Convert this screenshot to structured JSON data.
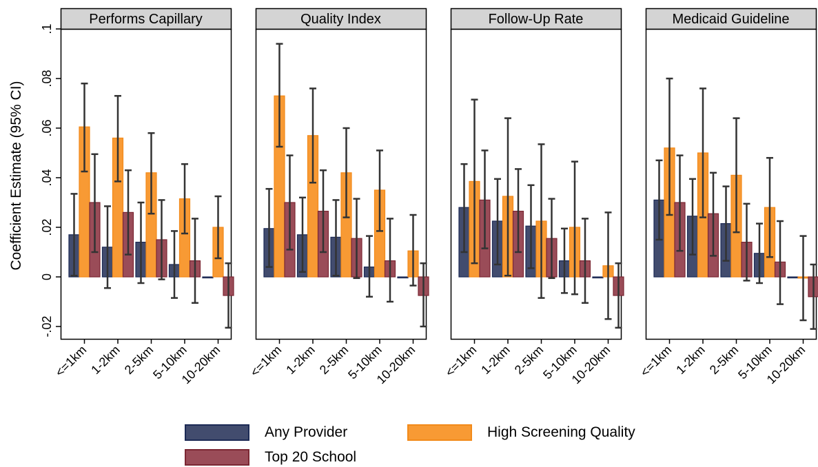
{
  "chart_data": {
    "type": "bar",
    "ylabel": "Coefficient Estimate (95% CI)",
    "ylim": [
      -0.025,
      0.1
    ],
    "yticks": [
      -0.02,
      0,
      0.02,
      0.04,
      0.06,
      0.08,
      0.1
    ],
    "ytick_labels": [
      "-.02",
      "0",
      ".02",
      ".04",
      ".06",
      ".08",
      ".1"
    ],
    "categories": [
      "<=1km",
      "1-2km",
      "2-5km",
      "5-10km",
      "10-20km"
    ],
    "series_names": [
      "Any Provider",
      "High Screening Quality",
      "Top 20 School"
    ],
    "colors": {
      "Any Provider": "#424c6e",
      "High Screening Quality": "#f89a34",
      "Top 20 School": "#9a4c58"
    },
    "edge_colors": {
      "Any Provider": "#1c2a55",
      "High Screening Quality": "#f28a1a",
      "Top 20 School": "#7b2733"
    },
    "panels": [
      {
        "title": "Performs Capillary",
        "series": [
          {
            "name": "Any Provider",
            "values": [
              0.017,
              0.012,
              0.014,
              0.005,
              0.0
            ],
            "ci_low": [
              0.0005,
              -0.0045,
              -0.0025,
              -0.0085,
              0.0
            ],
            "ci_high": [
              0.0335,
              0.0285,
              0.03,
              0.0185,
              0.0
            ]
          },
          {
            "name": "High Screening Quality",
            "values": [
              0.0605,
              0.056,
              0.042,
              0.0315,
              0.02
            ],
            "ci_low": [
              0.0425,
              0.0385,
              0.0255,
              0.0175,
              0.0075
            ],
            "ci_high": [
              0.078,
              0.073,
              0.058,
              0.0455,
              0.0325
            ]
          },
          {
            "name": "Top 20 School",
            "values": [
              0.03,
              0.026,
              0.015,
              0.0065,
              -0.0075
            ],
            "ci_low": [
              0.01,
              0.009,
              -0.001,
              -0.0105,
              -0.0205
            ],
            "ci_high": [
              0.0495,
              0.043,
              0.031,
              0.0235,
              0.0055
            ]
          }
        ]
      },
      {
        "title": "Quality Index",
        "series": [
          {
            "name": "Any Provider",
            "values": [
              0.0195,
              0.017,
              0.016,
              0.004,
              0.0
            ],
            "ci_low": [
              0.004,
              0.002,
              0.0005,
              -0.008,
              0.0
            ],
            "ci_high": [
              0.0355,
              0.032,
              0.031,
              0.0165,
              0.0
            ]
          },
          {
            "name": "High Screening Quality",
            "values": [
              0.073,
              0.057,
              0.042,
              0.035,
              0.0105
            ],
            "ci_low": [
              0.0525,
              0.038,
              0.024,
              0.0185,
              -0.0035
            ],
            "ci_high": [
              0.094,
              0.076,
              0.06,
              0.051,
              0.025
            ]
          },
          {
            "name": "Top 20 School",
            "values": [
              0.03,
              0.0265,
              0.0155,
              0.0065,
              -0.0075
            ],
            "ci_low": [
              0.011,
              0.01,
              -0.0005,
              -0.01,
              -0.02
            ],
            "ci_high": [
              0.049,
              0.043,
              0.0315,
              0.0235,
              0.0055
            ]
          }
        ]
      },
      {
        "title": "Follow-Up Rate",
        "series": [
          {
            "name": "Any Provider",
            "values": [
              0.028,
              0.0225,
              0.0205,
              0.0065,
              0.0
            ],
            "ci_low": [
              0.01,
              0.005,
              0.0035,
              -0.0065,
              0.0
            ],
            "ci_high": [
              0.0455,
              0.0395,
              0.037,
              0.0195,
              0.0
            ]
          },
          {
            "name": "High Screening Quality",
            "values": [
              0.0385,
              0.0325,
              0.0225,
              0.02,
              0.0045
            ],
            "ci_low": [
              0.0055,
              0.0005,
              -0.0085,
              -0.007,
              -0.017
            ],
            "ci_high": [
              0.0715,
              0.064,
              0.0535,
              0.0465,
              0.026
            ]
          },
          {
            "name": "Top 20 School",
            "values": [
              0.031,
              0.0265,
              0.0155,
              0.0065,
              -0.0075
            ],
            "ci_low": [
              0.0115,
              0.01,
              -0.0005,
              -0.0105,
              -0.0205
            ],
            "ci_high": [
              0.051,
              0.0435,
              0.0315,
              0.0235,
              0.0055
            ]
          }
        ]
      },
      {
        "title": "Medicaid Guideline",
        "series": [
          {
            "name": "Any Provider",
            "values": [
              0.031,
              0.0245,
              0.0215,
              0.0095,
              0.0
            ],
            "ci_low": [
              0.015,
              0.009,
              0.0065,
              -0.0025,
              0.0
            ],
            "ci_high": [
              0.047,
              0.0395,
              0.0365,
              0.0215,
              0.0
            ]
          },
          {
            "name": "High Screening Quality",
            "values": [
              0.052,
              0.05,
              0.041,
              0.028,
              -0.0005
            ],
            "ci_low": [
              0.025,
              0.024,
              0.018,
              0.008,
              -0.0175
            ],
            "ci_high": [
              0.08,
              0.076,
              0.064,
              0.048,
              0.0165
            ]
          },
          {
            "name": "Top 20 School",
            "values": [
              0.03,
              0.0255,
              0.014,
              0.006,
              -0.008
            ],
            "ci_low": [
              0.0105,
              0.0085,
              -0.0015,
              -0.011,
              -0.021
            ],
            "ci_high": [
              0.049,
              0.042,
              0.0295,
              0.0225,
              0.005
            ]
          }
        ]
      }
    ]
  },
  "legend": {
    "items": [
      {
        "label": "Any Provider",
        "color": "#424c6e",
        "edge": "#1c2a55"
      },
      {
        "label": "High Screening Quality",
        "color": "#f89a34",
        "edge": "#f28a1a"
      },
      {
        "label": "Top 20 School",
        "color": "#9a4c58",
        "edge": "#7b2733"
      }
    ]
  }
}
